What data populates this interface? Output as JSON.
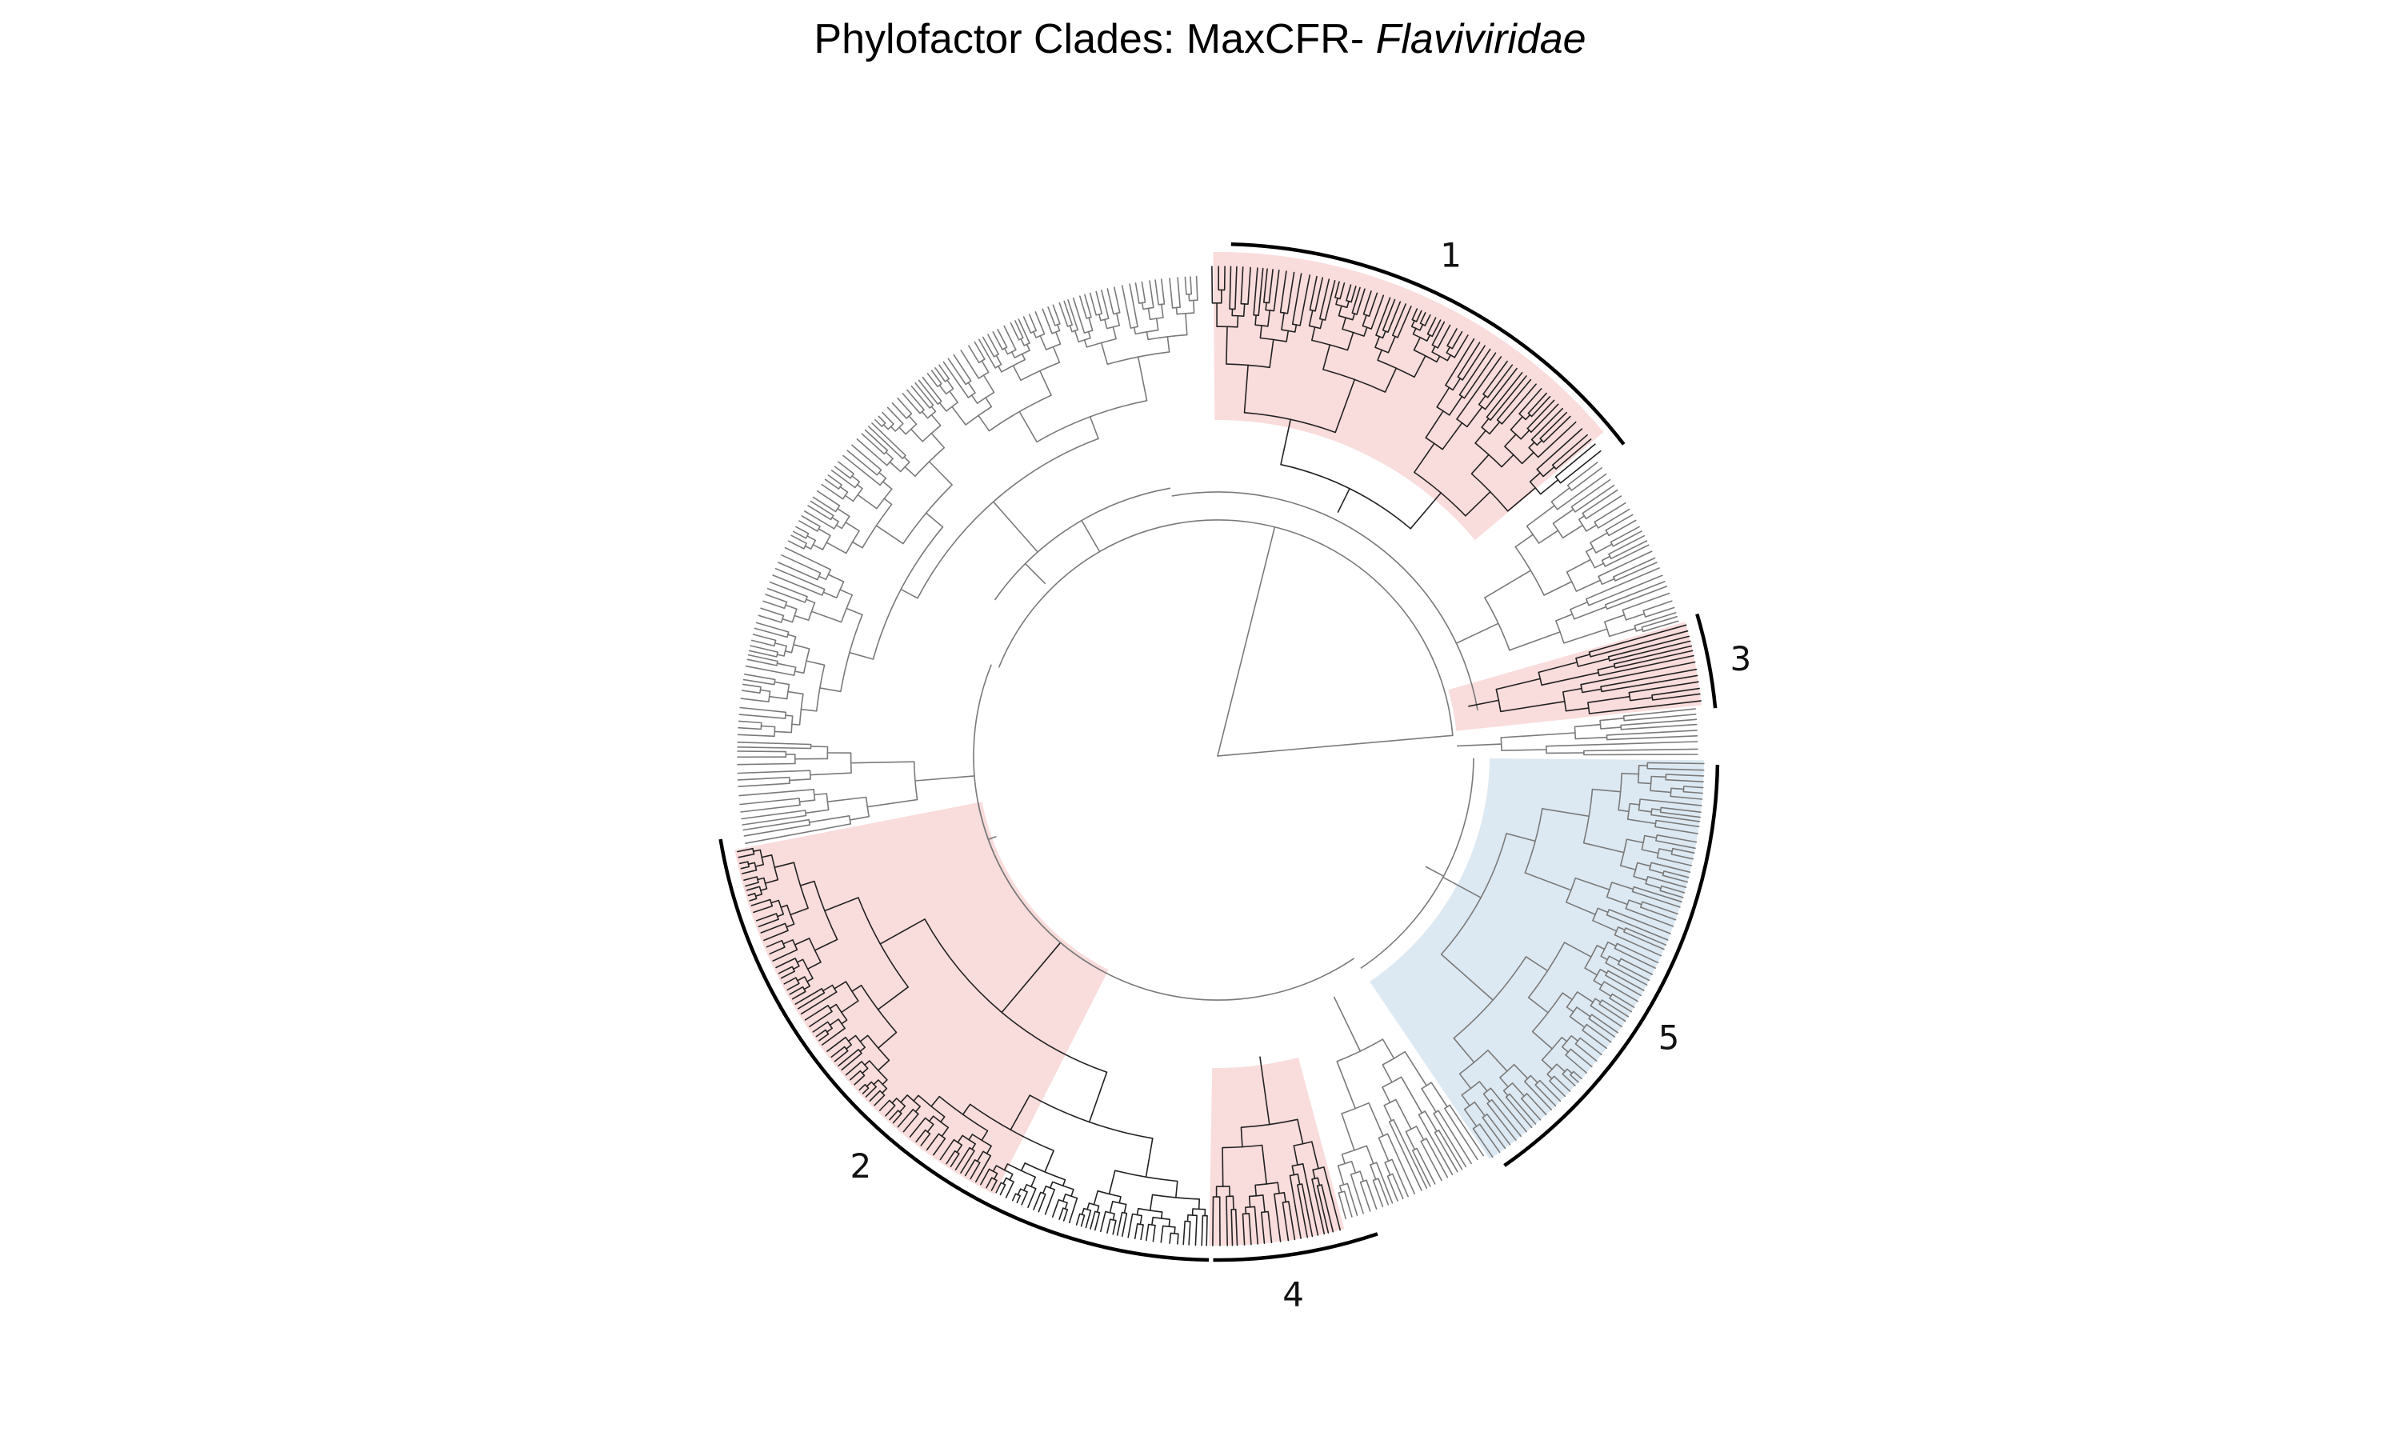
{
  "title": {
    "prefix": "Phylofactor Clades: MaxCFR- ",
    "taxon": "Flaviviridae"
  },
  "colors": {
    "positive_clade": "#f9dcdc",
    "negative_clade": "#dde9f2",
    "branch": "#7a7a7a",
    "branch_dark": "#222222",
    "bracket": "#000000"
  },
  "clades": [
    {
      "label": "1",
      "effect": "positive"
    },
    {
      "label": "2",
      "effect": "positive"
    },
    {
      "label": "3",
      "effect": "positive"
    },
    {
      "label": "4",
      "effect": "positive"
    },
    {
      "label": "5",
      "effect": "negative"
    }
  ]
}
